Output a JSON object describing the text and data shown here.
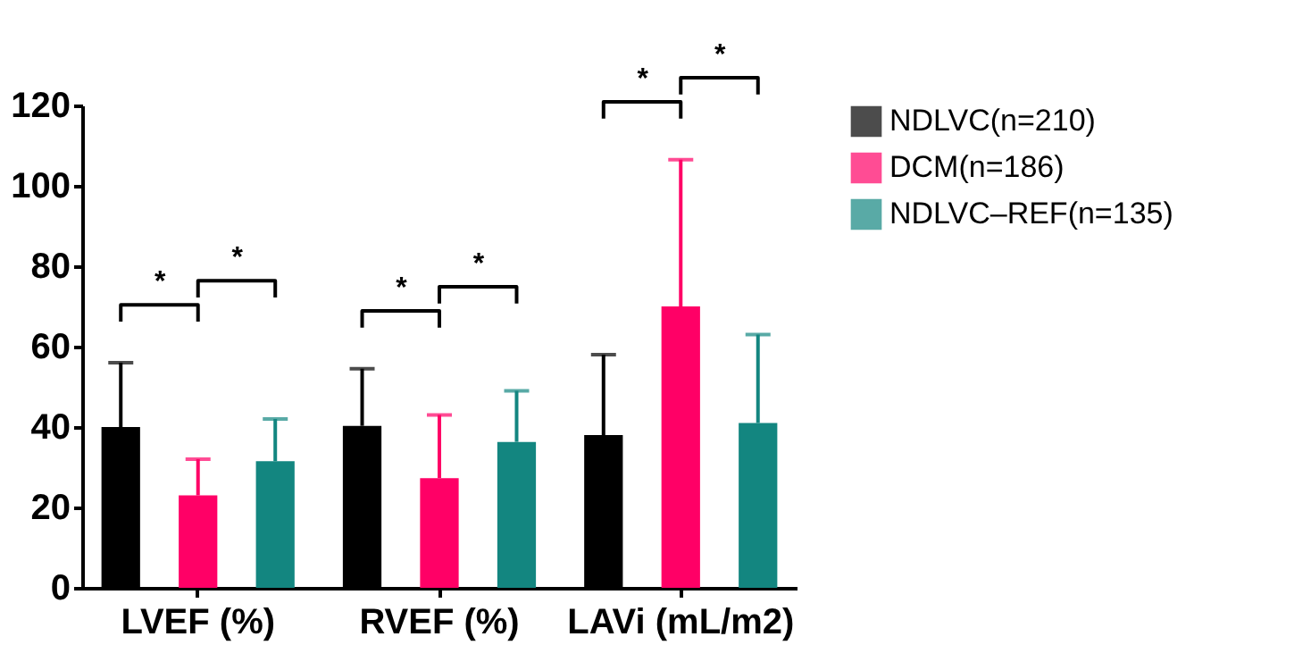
{
  "chart_data": {
    "type": "bar",
    "categories": [
      "LVEF (%)",
      "RVEF (%)",
      "LAVi (mL/m2)"
    ],
    "series": [
      {
        "name": "NDLVC(n=210)",
        "color": "#000000",
        "values": [
          40,
          40.3,
          38
        ],
        "errors": [
          [
            40,
            56
          ],
          [
            40.3,
            54.5
          ],
          [
            38,
            58
          ]
        ]
      },
      {
        "name": "DCM(n=186)",
        "color": "#ff0066",
        "values": [
          23,
          27.3,
          70
        ],
        "errors": [
          [
            23,
            32
          ],
          [
            27.3,
            43
          ],
          [
            70,
            106.5
          ]
        ]
      },
      {
        "name": "NDLVC–REF(n=135)",
        "color": "#138680",
        "values": [
          31.5,
          36.3,
          41
        ],
        "errors": [
          [
            31.5,
            42
          ],
          [
            36.3,
            49
          ],
          [
            41,
            63
          ]
        ]
      }
    ],
    "ylim": [
      0,
      120
    ],
    "yticks": [
      0,
      20,
      40,
      60,
      80,
      100,
      120
    ],
    "grid": false,
    "legend": "top right",
    "annotations": [
      "*",
      "*",
      "*",
      "*",
      "*",
      "*"
    ]
  }
}
